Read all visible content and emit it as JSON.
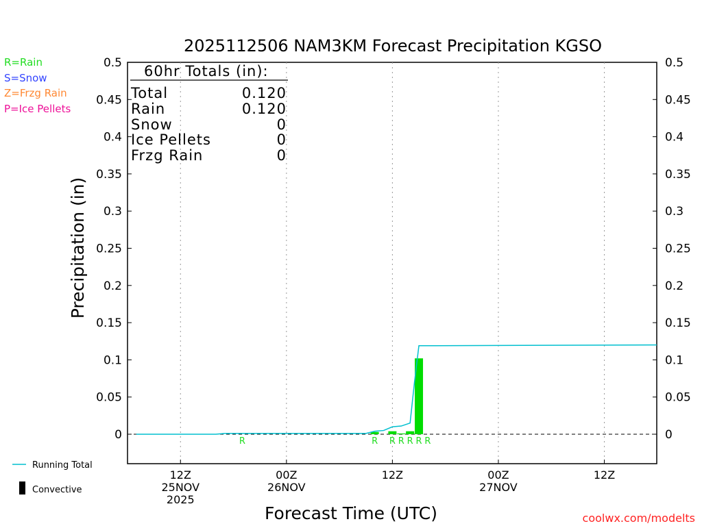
{
  "chart_data": {
    "type": "bar",
    "title": "2025112506 NAM3KM Forecast Precipitation KGSO",
    "xlabel": "Forecast Time (UTC)",
    "ylabel": "Precipitation (in)",
    "ylim": [
      -0.04,
      0.5
    ],
    "yticks": [
      "0.5",
      "0.45",
      "0.4",
      "0.35",
      "0.3",
      "0.25",
      "0.2",
      "0.15",
      "0.1",
      "0.05",
      "0"
    ],
    "x_unit": "forecast hour",
    "xlim": [
      0,
      60
    ],
    "xticks": [
      {
        "hour": 6,
        "lines": [
          "12Z",
          "25NOV",
          "2025"
        ]
      },
      {
        "hour": 18,
        "lines": [
          "00Z",
          "26NOV"
        ]
      },
      {
        "hour": 30,
        "lines": [
          "12Z"
        ]
      },
      {
        "hour": 42,
        "lines": [
          "00Z",
          "27NOV"
        ]
      },
      {
        "hour": 54,
        "lines": [
          "12Z"
        ]
      }
    ],
    "grid": "vertical-dotted",
    "series": [
      {
        "name": "Running Total",
        "type": "line",
        "color": "#00bfcf",
        "x": [
          1,
          10,
          11,
          12,
          13,
          14,
          15,
          16,
          27,
          28,
          29,
          30,
          31,
          32,
          32.5,
          33,
          60
        ],
        "values": [
          0,
          0,
          0.001,
          0.001,
          0.001,
          0.001,
          0.001,
          0.001,
          0.001,
          0.004,
          0.005,
          0.01,
          0.011,
          0.015,
          0.07,
          0.119,
          0.12
        ]
      },
      {
        "name": "Convective",
        "type": "bar",
        "color": "#00dd00",
        "x": [
          28,
          30,
          31,
          32,
          33
        ],
        "values": [
          0.003,
          0.004,
          0.001,
          0.004,
          0.102
        ]
      }
    ],
    "ptype_markers": {
      "letter": "R",
      "hours": [
        13,
        28,
        30,
        31,
        32,
        33,
        34
      ]
    },
    "totals_box": {
      "header": "60hr Totals (in):",
      "rows": [
        {
          "label": "Total",
          "value": "0.120"
        },
        {
          "label": "Rain",
          "value": "0.120"
        },
        {
          "label": "Snow",
          "value": "0"
        },
        {
          "label": "Ice Pellets",
          "value": "0"
        },
        {
          "label": "Frzg Rain",
          "value": "0"
        }
      ]
    }
  },
  "type_legend": [
    {
      "text": "R=Rain",
      "color": "#22dd22"
    },
    {
      "text": "S=Snow",
      "color": "#3344ff"
    },
    {
      "text": "Z=Frzg Rain",
      "color": "#ff8833"
    },
    {
      "text": "P=Ice Pellets",
      "color": "#ee1199"
    }
  ],
  "line_legend": {
    "running_total": "Running Total",
    "convective": "Convective"
  },
  "footer": "coolwx.com/modelts"
}
